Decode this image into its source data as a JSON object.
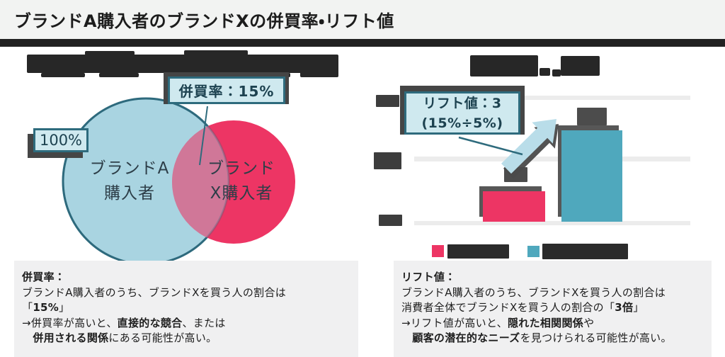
{
  "page": {
    "title": "ブランドA購入者のブランドXの併買率・リフト値"
  },
  "colors": {
    "header_bg": "#f2f3f2",
    "divider": "#212121",
    "light_blue_fill": "#a9d4e1",
    "badge_bg": "#cfe9ef",
    "teal_border": "#2e6b7d",
    "pink": "#ed3564",
    "teal_bar": "#4fa8bd",
    "gridline": "#ececec",
    "panel_bg": "#f0f0f1",
    "redaction": "#272727",
    "shadow": "#454545"
  },
  "venn": {
    "coverage_label": "100%",
    "overlap_label": "併買率：15%",
    "circle_a": {
      "line1": "ブランドA",
      "line2": "購入者"
    },
    "circle_x": {
      "line1": "ブランド",
      "line2": "X購入者"
    }
  },
  "lift": {
    "line1": "リフト値：3",
    "line2": "(15%÷5%)"
  },
  "chart_data": {
    "type": "bar",
    "categories": [
      "",
      ""
    ],
    "category_labels_masked": true,
    "values": [
      5,
      15
    ],
    "unit": "%",
    "bar_colors": [
      "#ed3564",
      "#4fa8bd"
    ],
    "value_labels_masked": true,
    "ytick_labels_masked": true,
    "ylim": [
      0,
      20
    ],
    "gridlines_percent": [
      0,
      10,
      20
    ],
    "legend": {
      "position": "bottom",
      "entries": [
        {
          "color": "#ed3564",
          "label": "",
          "label_masked": true
        },
        {
          "color": "#4fa8bd",
          "label": "",
          "label_masked": true
        }
      ]
    },
    "annotation": "リフト値：3 (15%÷5%)"
  },
  "explanations": {
    "left": {
      "lines": [
        [
          {
            "t": "併買率：",
            "b": true
          }
        ],
        [
          {
            "t": "ブランドA購入者のうち、ブランドXを買う人の割合は",
            "b": false
          }
        ],
        [
          {
            "t": "「",
            "b": false
          },
          {
            "t": "15%",
            "b": true
          },
          {
            "t": "」",
            "b": false
          }
        ],
        [
          {
            "t": "→併買率が高いと、",
            "b": false
          },
          {
            "t": "直接的な競合",
            "b": true
          },
          {
            "t": "、または",
            "b": false
          }
        ],
        [
          {
            "t": "　",
            "b": false
          },
          {
            "t": "併用される関係",
            "b": true
          },
          {
            "t": "にある可能性が高い。",
            "b": false
          }
        ]
      ]
    },
    "right": {
      "lines": [
        [
          {
            "t": "リフト値：",
            "b": true
          }
        ],
        [
          {
            "t": "ブランドA購入者のうち、ブランドXを買う人の割合は",
            "b": false
          }
        ],
        [
          {
            "t": "消費者全体でブランドXを買う人の割合の「",
            "b": false
          },
          {
            "t": "3倍",
            "b": true
          },
          {
            "t": "」",
            "b": false
          }
        ],
        [
          {
            "t": "→リフト値が高いと、",
            "b": false
          },
          {
            "t": "隠れた相関関係",
            "b": true
          },
          {
            "t": "や",
            "b": false
          }
        ],
        [
          {
            "t": "　",
            "b": false
          },
          {
            "t": "顧客の潜在的なニーズ",
            "b": true
          },
          {
            "t": "を見つけられる可能性が高い。",
            "b": false
          }
        ]
      ]
    }
  }
}
